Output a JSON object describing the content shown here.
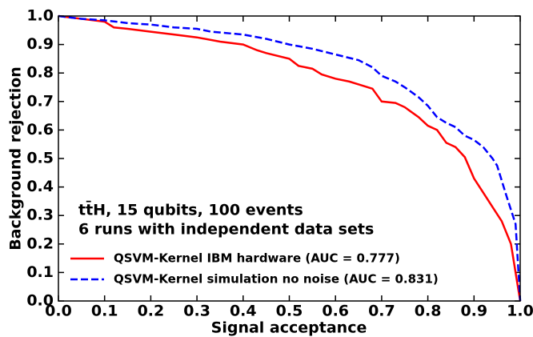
{
  "chart_data": {
    "type": "line",
    "xlabel": "Signal acceptance",
    "ylabel": "Background rejection",
    "annotations": [
      "tt̄H, 15 qubits, 100 events",
      "6 runs with independent data sets"
    ],
    "xlim": [
      0,
      1
    ],
    "ylim": [
      0,
      1
    ],
    "xticks": [
      {
        "value": 0,
        "label": "0.0"
      },
      0.1,
      0.2,
      0.3,
      0.4,
      0.5,
      0.6,
      0.7,
      0.8,
      0.9,
      {
        "value": 1,
        "label": "1.0"
      }
    ],
    "yticks": [
      {
        "value": 0,
        "label": "0.0"
      },
      0.1,
      0.2,
      0.3,
      0.4,
      0.5,
      0.6,
      0.7,
      0.8,
      0.9,
      {
        "value": 1,
        "label": "1.0"
      }
    ],
    "legend": "lower left",
    "series": [
      {
        "name": "QSVM-Kernel IBM hardware (AUC = 0.777)",
        "color": "#ff0000",
        "dash": "solid",
        "x": [
          0,
          0.05,
          0.1,
          0.12,
          0.15,
          0.2,
          0.25,
          0.3,
          0.35,
          0.4,
          0.43,
          0.45,
          0.5,
          0.52,
          0.55,
          0.57,
          0.6,
          0.63,
          0.65,
          0.68,
          0.7,
          0.73,
          0.75,
          0.78,
          0.8,
          0.82,
          0.84,
          0.86,
          0.88,
          0.9,
          0.92,
          0.94,
          0.96,
          0.98,
          1.0
        ],
        "values": [
          1.0,
          0.99,
          0.98,
          0.96,
          0.955,
          0.945,
          0.935,
          0.925,
          0.91,
          0.9,
          0.88,
          0.87,
          0.85,
          0.825,
          0.815,
          0.795,
          0.78,
          0.77,
          0.76,
          0.745,
          0.7,
          0.695,
          0.68,
          0.645,
          0.615,
          0.6,
          0.555,
          0.54,
          0.505,
          0.43,
          0.38,
          0.33,
          0.28,
          0.2,
          0.0
        ]
      },
      {
        "name": "QSVM-Kernel simulation no noise (AUC = 0.831)",
        "color": "#0000ff",
        "dash": "dashed",
        "x": [
          0,
          0.05,
          0.1,
          0.15,
          0.2,
          0.25,
          0.3,
          0.33,
          0.4,
          0.45,
          0.5,
          0.55,
          0.6,
          0.65,
          0.68,
          0.7,
          0.73,
          0.75,
          0.78,
          0.8,
          0.82,
          0.84,
          0.86,
          0.88,
          0.9,
          0.92,
          0.94,
          0.95,
          0.97,
          0.99,
          1.0
        ],
        "values": [
          1.0,
          0.99,
          0.985,
          0.975,
          0.97,
          0.96,
          0.955,
          0.945,
          0.935,
          0.92,
          0.9,
          0.885,
          0.865,
          0.845,
          0.82,
          0.79,
          0.77,
          0.75,
          0.715,
          0.685,
          0.645,
          0.625,
          0.61,
          0.58,
          0.565,
          0.54,
          0.5,
          0.475,
          0.37,
          0.27,
          0.0
        ]
      }
    ]
  }
}
